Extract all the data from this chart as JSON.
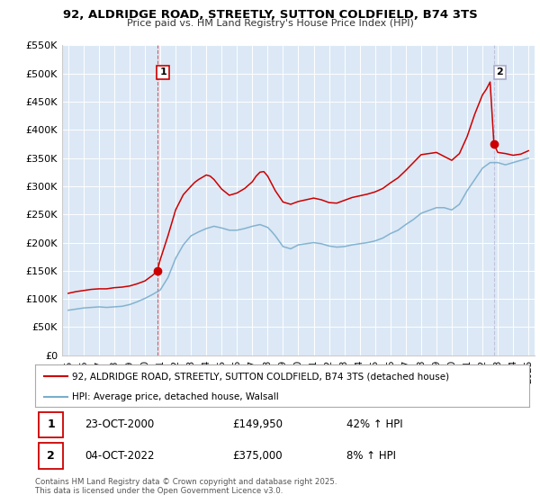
{
  "title": "92, ALDRIDGE ROAD, STREETLY, SUTTON COLDFIELD, B74 3TS",
  "subtitle": "Price paid vs. HM Land Registry's House Price Index (HPI)",
  "bg_color": "#ffffff",
  "plot_bg_color": "#dce8f5",
  "red_color": "#cc0000",
  "blue_color": "#7aadcc",
  "grid_color": "#ffffff",
  "ylim": [
    0,
    550000
  ],
  "yticks": [
    0,
    50000,
    100000,
    150000,
    200000,
    250000,
    300000,
    350000,
    400000,
    450000,
    500000,
    550000
  ],
  "xlim_start": 1994.6,
  "xlim_end": 2025.4,
  "xticks": [
    1995,
    1996,
    1997,
    1998,
    1999,
    2000,
    2001,
    2002,
    2003,
    2004,
    2005,
    2006,
    2007,
    2008,
    2009,
    2010,
    2011,
    2012,
    2013,
    2014,
    2015,
    2016,
    2017,
    2018,
    2019,
    2020,
    2021,
    2022,
    2023,
    2024,
    2025
  ],
  "marker1_x": 2000.8,
  "marker1_y": 149950,
  "marker2_x": 2022.75,
  "marker2_y": 375000,
  "legend_line1": "92, ALDRIDGE ROAD, STREETLY, SUTTON COLDFIELD, B74 3TS (detached house)",
  "legend_line2": "HPI: Average price, detached house, Walsall",
  "table_row1_num": "1",
  "table_row1_date": "23-OCT-2000",
  "table_row1_price": "£149,950",
  "table_row1_hpi": "42% ↑ HPI",
  "table_row2_num": "2",
  "table_row2_date": "04-OCT-2022",
  "table_row2_price": "£375,000",
  "table_row2_hpi": "8% ↑ HPI",
  "footer": "Contains HM Land Registry data © Crown copyright and database right 2025.\nThis data is licensed under the Open Government Licence v3.0.",
  "hpi_years": [
    1995,
    1995.5,
    1996,
    1996.5,
    1997,
    1997.5,
    1998,
    1998.5,
    1999,
    1999.5,
    2000,
    2000.5,
    2001,
    2001.5,
    2002,
    2002.5,
    2003,
    2003.5,
    2004,
    2004.5,
    2005,
    2005.5,
    2006,
    2006.5,
    2007,
    2007.5,
    2008,
    2008.25,
    2008.5,
    2009,
    2009.5,
    2010,
    2010.5,
    2011,
    2011.5,
    2012,
    2012.5,
    2013,
    2013.5,
    2014,
    2014.5,
    2015,
    2015.5,
    2016,
    2016.5,
    2017,
    2017.5,
    2018,
    2018.5,
    2019,
    2019.5,
    2020,
    2020.5,
    2021,
    2021.5,
    2022,
    2022.5,
    2023,
    2023.25,
    2023.5,
    2024,
    2024.5,
    2025
  ],
  "hpi_vals": [
    80000,
    82000,
    84000,
    85000,
    86000,
    85000,
    86000,
    87000,
    90000,
    95000,
    101000,
    108000,
    116000,
    138000,
    172000,
    196000,
    212000,
    219000,
    225000,
    229000,
    226000,
    222000,
    222000,
    225000,
    229000,
    232000,
    227000,
    220000,
    212000,
    193000,
    189000,
    196000,
    198000,
    200000,
    198000,
    194000,
    192000,
    193000,
    196000,
    198000,
    200000,
    203000,
    208000,
    216000,
    222000,
    232000,
    241000,
    252000,
    257000,
    262000,
    262000,
    258000,
    268000,
    292000,
    312000,
    332000,
    342000,
    342000,
    340000,
    338000,
    342000,
    346000,
    350000
  ],
  "red_years": [
    1995,
    1995.5,
    1996,
    1996.5,
    1997,
    1997.5,
    1998,
    1998.5,
    1999,
    1999.5,
    2000,
    2000.5,
    2000.8,
    2001,
    2001.5,
    2002,
    2002.5,
    2003,
    2003.25,
    2003.5,
    2004,
    2004.25,
    2004.5,
    2005,
    2005.5,
    2006,
    2006.5,
    2007,
    2007.25,
    2007.5,
    2007.75,
    2008,
    2008.25,
    2008.5,
    2009,
    2009.5,
    2010,
    2010.5,
    2011,
    2011.5,
    2012,
    2012.5,
    2013,
    2013.5,
    2014,
    2014.5,
    2015,
    2015.5,
    2016,
    2016.5,
    2017,
    2017.5,
    2018,
    2018.5,
    2019,
    2019.5,
    2020,
    2020.5,
    2021,
    2021.5,
    2022,
    2022.25,
    2022.5,
    2022.75,
    2023,
    2023.5,
    2024,
    2024.5,
    2025
  ],
  "red_vals": [
    110000,
    113000,
    115000,
    117000,
    118000,
    118000,
    120000,
    121000,
    123000,
    127000,
    132000,
    142000,
    149950,
    170000,
    212000,
    258000,
    285000,
    300000,
    307000,
    312000,
    320000,
    318000,
    312000,
    295000,
    284000,
    288000,
    296000,
    308000,
    318000,
    325000,
    326000,
    318000,
    305000,
    292000,
    272000,
    268000,
    273000,
    276000,
    279000,
    276000,
    271000,
    270000,
    275000,
    280000,
    283000,
    286000,
    290000,
    296000,
    306000,
    315000,
    328000,
    342000,
    356000,
    358000,
    360000,
    353000,
    346000,
    358000,
    388000,
    428000,
    462000,
    472000,
    485000,
    375000,
    360000,
    358000,
    355000,
    357000,
    363000
  ]
}
